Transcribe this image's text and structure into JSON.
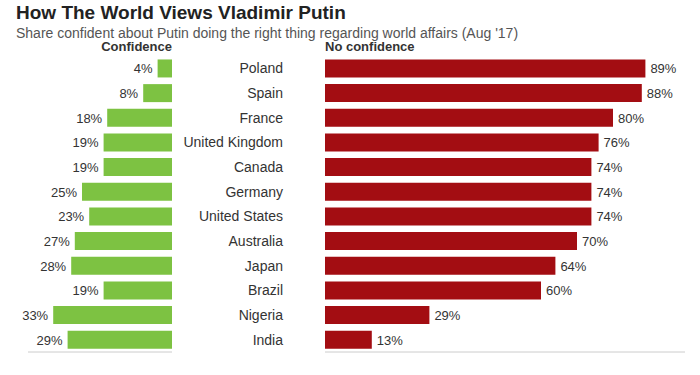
{
  "chart_data": [
    {
      "type": "bar",
      "orientation": "horizontal",
      "title": "How The World Views Vladimir Putin",
      "subtitle": "Share confident about Putin doing the right thing regarding world affairs (Aug '17)",
      "categories": [
        "Poland",
        "Spain",
        "France",
        "United Kingdom",
        "Canada",
        "Germany",
        "United States",
        "Australia",
        "Japan",
        "Brazil",
        "Nigeria",
        "India"
      ],
      "series": [
        {
          "name": "Confidence",
          "color": "#7dc242",
          "values": [
            4,
            8,
            18,
            19,
            19,
            25,
            23,
            27,
            28,
            19,
            33,
            29
          ],
          "value_labels": [
            "4%",
            "8%",
            "18%",
            "19%",
            "19%",
            "25%",
            "23%",
            "27%",
            "28%",
            "19%",
            "33%",
            "29%"
          ]
        }
      ],
      "xlim": [
        0,
        40
      ],
      "data_labels": true,
      "tick_labels": false
    },
    {
      "type": "bar",
      "orientation": "horizontal",
      "categories": [
        "Poland",
        "Spain",
        "France",
        "United Kingdom",
        "Canada",
        "Germany",
        "United States",
        "Australia",
        "Japan",
        "Brazil",
        "Nigeria",
        "India"
      ],
      "series": [
        {
          "name": "No confidence",
          "color": "#a30d12",
          "values": [
            89,
            88,
            80,
            76,
            74,
            74,
            74,
            70,
            64,
            60,
            29,
            13
          ],
          "value_labels": [
            "89%",
            "88%",
            "80%",
            "76%",
            "74%",
            "74%",
            "74%",
            "70%",
            "64%",
            "60%",
            "29%",
            "13%"
          ]
        }
      ],
      "xlim": [
        0,
        100
      ],
      "data_labels": true,
      "tick_labels": "y"
    }
  ]
}
